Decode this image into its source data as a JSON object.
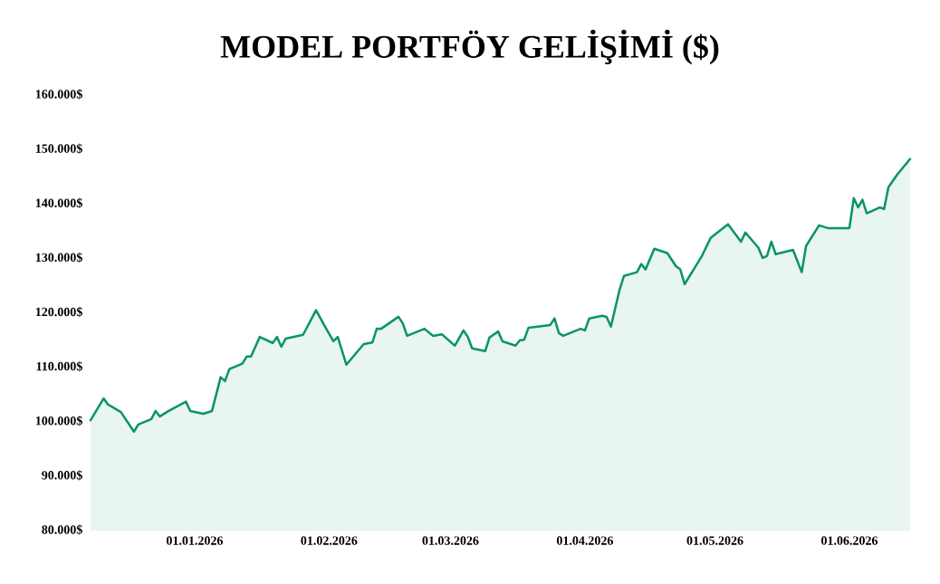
{
  "chart_data": {
    "type": "area",
    "title": "MODEL PORTFÖY GELİŞİMİ ($)",
    "color": "#0b9467",
    "x": [
      "2025-12-08",
      "2025-12-11",
      "2025-12-12",
      "2025-12-15",
      "2025-12-18",
      "2025-12-19",
      "2025-12-22",
      "2025-12-23",
      "2025-12-24",
      "2025-12-26",
      "2025-12-30",
      "2025-12-31",
      "2026-01-03",
      "2026-01-05",
      "2026-01-07",
      "2026-01-08",
      "2026-01-09",
      "2026-01-12",
      "2026-01-13",
      "2026-01-14",
      "2026-01-16",
      "2026-01-19",
      "2026-01-20",
      "2026-01-21",
      "2026-01-22",
      "2026-01-26",
      "2026-01-29",
      "2026-01-31",
      "2026-02-02",
      "2026-02-03",
      "2026-02-05",
      "2026-02-09",
      "2026-02-11",
      "2026-02-12",
      "2026-02-13",
      "2026-02-17",
      "2026-02-18",
      "2026-02-19",
      "2026-02-23",
      "2026-02-25",
      "2026-02-27",
      "2026-03-02",
      "2026-03-04",
      "2026-03-05",
      "2026-03-06",
      "2026-03-09",
      "2026-03-10",
      "2026-03-12",
      "2026-03-13",
      "2026-03-16",
      "2026-03-17",
      "2026-03-18",
      "2026-03-19",
      "2026-03-24",
      "2026-03-25",
      "2026-03-26",
      "2026-03-27",
      "2026-03-31",
      "2026-04-01",
      "2026-04-02",
      "2026-04-05",
      "2026-04-06",
      "2026-04-07",
      "2026-04-09",
      "2026-04-10",
      "2026-04-13",
      "2026-04-14",
      "2026-04-15",
      "2026-04-17",
      "2026-04-20",
      "2026-04-22",
      "2026-04-23",
      "2026-04-24",
      "2026-04-28",
      "2026-04-30",
      "2026-05-04",
      "2026-05-07",
      "2026-05-08",
      "2026-05-11",
      "2026-05-12",
      "2026-05-13",
      "2026-05-14",
      "2026-05-15",
      "2026-05-19",
      "2026-05-21",
      "2026-05-22",
      "2026-05-25",
      "2026-05-27",
      "2026-06-01",
      "2026-06-02",
      "2026-06-03",
      "2026-06-04",
      "2026-06-05",
      "2026-06-08",
      "2026-06-09",
      "2026-06-10",
      "2026-06-12",
      "2026-06-15"
    ],
    "values": [
      100100,
      104100,
      103000,
      101600,
      98000,
      99300,
      100300,
      101800,
      100800,
      101800,
      103500,
      101800,
      101300,
      101800,
      108000,
      107300,
      109500,
      110500,
      111800,
      111800,
      115400,
      114300,
      115400,
      113600,
      115100,
      115800,
      120300,
      117400,
      114600,
      115400,
      110300,
      114100,
      114400,
      116900,
      116900,
      119100,
      117900,
      115600,
      116900,
      115600,
      115900,
      113800,
      116600,
      115400,
      113300,
      112800,
      115300,
      116400,
      114600,
      113800,
      114800,
      114900,
      117100,
      117600,
      118800,
      116100,
      115600,
      116900,
      116600,
      118800,
      119300,
      119100,
      117300,
      124100,
      126600,
      127300,
      128800,
      127800,
      131600,
      130800,
      128400,
      127800,
      125100,
      130300,
      133600,
      136100,
      132900,
      134600,
      131800,
      129900,
      130300,
      132900,
      130600,
      131400,
      127300,
      132100,
      135900,
      135400,
      135400,
      140900,
      139200,
      140600,
      138100,
      139200,
      138900,
      142900,
      145200,
      148100
    ],
    "xlim": [
      "2025-12-08",
      "2026-06-15"
    ],
    "ylim": [
      80000,
      160000
    ],
    "xticks": [
      {
        "value": "2026-01-01",
        "label": "01.01.2026"
      },
      {
        "value": "2026-02-01",
        "label": "01.02.2026"
      },
      {
        "value": "2026-03-01",
        "label": "01.03.2026"
      },
      {
        "value": "2026-04-01",
        "label": "01.04.2026"
      },
      {
        "value": "2026-05-01",
        "label": "01.05.2026"
      },
      {
        "value": "2026-06-01",
        "label": "01.06.2026"
      }
    ],
    "yticks": [
      {
        "value": 80000,
        "label": "80.000$"
      },
      {
        "value": 90000,
        "label": "90.000$"
      },
      {
        "value": 100000,
        "label": "100.000$"
      },
      {
        "value": 110000,
        "label": "110.000$"
      },
      {
        "value": 120000,
        "label": "120.000$"
      },
      {
        "value": 130000,
        "label": "130.000$"
      },
      {
        "value": 140000,
        "label": "140.000$"
      },
      {
        "value": 150000,
        "label": "150.000$"
      },
      {
        "value": 160000,
        "label": "160.000$"
      }
    ]
  }
}
